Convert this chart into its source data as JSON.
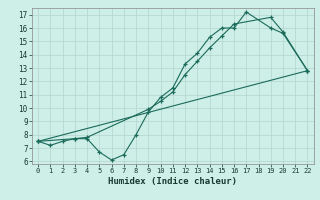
{
  "xlabel": "Humidex (Indice chaleur)",
  "bg_color": "#ceeee8",
  "grid_color": "#b8d8d2",
  "line_color": "#1a6b5a",
  "xlim": [
    -0.5,
    22.5
  ],
  "ylim": [
    5.8,
    17.5
  ],
  "xticks": [
    0,
    1,
    2,
    3,
    4,
    5,
    6,
    7,
    8,
    9,
    10,
    11,
    12,
    13,
    14,
    15,
    16,
    17,
    18,
    19,
    20,
    21,
    22
  ],
  "yticks": [
    6,
    7,
    8,
    9,
    10,
    11,
    12,
    13,
    14,
    15,
    16,
    17
  ],
  "line1_x": [
    0,
    1,
    2,
    3,
    4,
    5,
    6,
    7,
    8,
    9,
    10,
    11,
    12,
    13,
    14,
    15,
    16,
    17,
    19,
    20,
    22
  ],
  "line1_y": [
    7.5,
    7.2,
    7.5,
    7.7,
    7.7,
    6.7,
    6.1,
    6.5,
    8.0,
    9.7,
    10.8,
    11.5,
    13.3,
    14.1,
    15.3,
    16.0,
    16.0,
    17.2,
    16.0,
    15.6,
    12.8
  ],
  "line2_x": [
    0,
    3,
    4,
    9,
    10,
    11,
    12,
    13,
    14,
    15,
    16,
    19,
    20,
    22
  ],
  "line2_y": [
    7.5,
    7.7,
    7.8,
    9.9,
    10.5,
    11.2,
    12.5,
    13.5,
    14.5,
    15.4,
    16.3,
    16.8,
    15.7,
    12.8
  ],
  "line3_x": [
    0,
    22
  ],
  "line3_y": [
    7.5,
    12.8
  ]
}
